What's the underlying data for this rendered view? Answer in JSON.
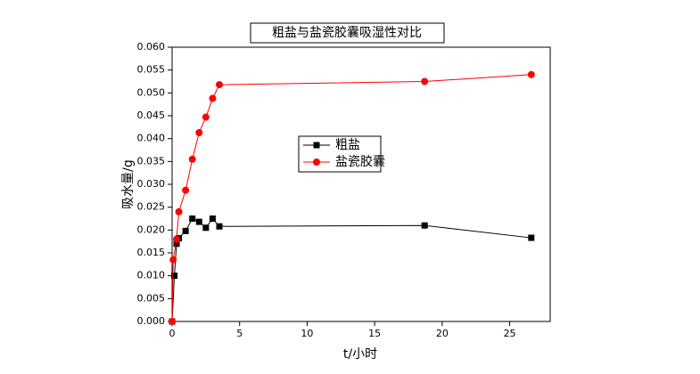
{
  "chart_data": {
    "type": "line",
    "title": "粗盐与盐瓷胶囊吸湿性对比",
    "x_label": "t/小时",
    "y_label": "吸水量/g",
    "xlim": [
      0,
      28
    ],
    "ylim": [
      0,
      0.06
    ],
    "xticks": [
      0,
      5,
      10,
      15,
      20,
      25
    ],
    "yticks": [
      {
        "value": 0,
        "label": "0.000"
      },
      {
        "value": 0.005,
        "label": "0.005"
      },
      {
        "value": 0.01,
        "label": "0.010"
      },
      {
        "value": 0.015,
        "label": "0.015"
      },
      {
        "value": 0.02,
        "label": "0.020"
      },
      {
        "value": 0.025,
        "label": "0.025"
      },
      {
        "value": 0.03,
        "label": "0.030"
      },
      {
        "value": 0.035,
        "label": "0.035"
      },
      {
        "value": 0.04,
        "label": "0.040"
      },
      {
        "value": 0.045,
        "label": "0.045"
      },
      {
        "value": 0.05,
        "label": "0.050"
      },
      {
        "value": 0.055,
        "label": "0.055"
      },
      {
        "value": 0.06,
        "label": "0.060"
      }
    ],
    "series": [
      {
        "name": "粗盐",
        "color": "#000000",
        "marker": "square",
        "x": [
          0,
          0.17,
          0.33,
          0.5,
          1,
          1.5,
          2,
          2.5,
          3,
          3.5,
          18.7,
          26.6
        ],
        "values": [
          0,
          0.01,
          0.017,
          0.0182,
          0.0198,
          0.0225,
          0.0218,
          0.0205,
          0.0225,
          0.0208,
          0.021,
          0.0183
        ]
      },
      {
        "name": "盐瓷胶囊",
        "color": "#ff0000",
        "marker": "circle",
        "x": [
          0,
          0.08,
          0.33,
          0.5,
          1,
          1.5,
          2,
          2.5,
          3,
          3.5,
          18.7,
          26.6
        ],
        "values": [
          0,
          0.0135,
          0.018,
          0.024,
          0.0287,
          0.0355,
          0.0413,
          0.0447,
          0.0488,
          0.0518,
          0.0525,
          0.054
        ]
      }
    ]
  }
}
